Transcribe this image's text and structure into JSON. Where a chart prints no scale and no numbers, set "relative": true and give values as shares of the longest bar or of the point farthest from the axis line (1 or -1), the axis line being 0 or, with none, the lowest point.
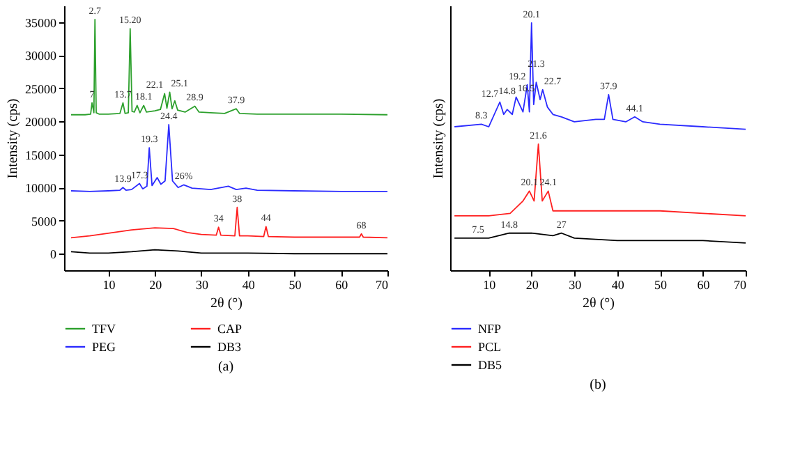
{
  "chart_data": [
    {
      "type": "line",
      "xlabel": "2θ (°)",
      "ylabel": "Intensity (cps)",
      "xlim": [
        0.5,
        70
      ],
      "ylim": [
        -2500,
        37500
      ],
      "xticks": [
        10,
        20,
        30,
        40,
        50,
        60,
        70
      ],
      "yticks": [
        0,
        5000,
        10000,
        15000,
        20000,
        25000,
        30000,
        35000
      ],
      "grid": false,
      "legend": "bottom",
      "marker": "none",
      "line_style": "solid",
      "series": [
        {
          "name": "TFV",
          "color": "#2ca02c",
          "x": [
            2,
            5,
            6.2,
            6.5,
            6.9,
            7.13,
            7.4,
            8,
            10,
            12.5,
            13.15,
            13.6,
            14.3,
            14.7,
            15.1,
            15.6,
            16.2,
            16.8,
            17.6,
            18.2,
            20,
            21.2,
            22.1,
            22.6,
            23.2,
            23.7,
            24.3,
            24.9,
            26.5,
            28.6,
            29.5,
            32,
            35,
            37.5,
            38.2,
            42,
            50,
            60,
            70
          ],
          "values": [
            21000,
            21000,
            21100,
            22800,
            21300,
            35400,
            21300,
            21100,
            21100,
            21200,
            22800,
            21200,
            21300,
            34000,
            21500,
            21400,
            22400,
            21300,
            22400,
            21400,
            21600,
            21800,
            24200,
            22000,
            24400,
            21900,
            23100,
            21700,
            21400,
            22300,
            21400,
            21300,
            21200,
            21900,
            21200,
            21100,
            21100,
            21100,
            21000
          ]
        },
        {
          "name": "PEG",
          "color": "#2b2bff",
          "x": [
            2,
            6,
            10,
            12.5,
            13.15,
            13.8,
            15,
            16.7,
            17.4,
            18.3,
            18.8,
            19.4,
            20.5,
            21.3,
            22.2,
            23,
            23.8,
            25,
            26.2,
            28,
            32,
            35.8,
            37.5,
            39.6,
            42,
            50,
            60,
            70
          ],
          "values": [
            9500,
            9400,
            9500,
            9600,
            10000,
            9600,
            9700,
            10600,
            9800,
            10200,
            16000,
            10300,
            11500,
            10500,
            11000,
            19500,
            11000,
            10000,
            10400,
            9900,
            9700,
            10200,
            9700,
            9900,
            9600,
            9500,
            9400,
            9400
          ]
        },
        {
          "name": "CAP",
          "color": "#ff2020",
          "x": [
            2,
            6,
            10,
            15,
            20,
            24,
            27,
            30,
            33.2,
            33.7,
            34.2,
            37.2,
            37.7,
            38.2,
            40,
            43.4,
            43.9,
            44.4,
            50,
            60,
            64,
            64.4,
            64.8,
            70
          ],
          "values": [
            2400,
            2700,
            3100,
            3600,
            3900,
            3800,
            3200,
            2900,
            2800,
            4000,
            2800,
            2700,
            7000,
            2700,
            2700,
            2600,
            4100,
            2600,
            2500,
            2500,
            2500,
            3000,
            2500,
            2400
          ]
        },
        {
          "name": "DB3",
          "color": "#000000",
          "x": [
            2,
            6,
            10,
            15,
            20,
            25,
            30,
            40,
            50,
            60,
            70
          ],
          "values": [
            300,
            100,
            100,
            300,
            600,
            400,
            100,
            100,
            0,
            0,
            0
          ]
        }
      ],
      "annotations": [
        {
          "text": "7",
          "x": 6.5,
          "y": 22800
        },
        {
          "text": "2.7",
          "x": 7.13,
          "y": 35400
        },
        {
          "text": "13.7",
          "x": 13.15,
          "y": 22800
        },
        {
          "text": "15.20",
          "x": 14.7,
          "y": 34000
        },
        {
          "text": "18.1",
          "x": 17.6,
          "y": 22400
        },
        {
          "text": "22.1",
          "x": 22.1,
          "y": 24200
        },
        {
          "text": "25.1",
          "x": 23.2,
          "y": 24400
        },
        {
          "text": "28.9",
          "x": 28.6,
          "y": 22300
        },
        {
          "text": "37.9",
          "x": 37.5,
          "y": 21900
        },
        {
          "text": "13.9",
          "x": 13.15,
          "y": 10000
        },
        {
          "text": "17.3",
          "x": 16.7,
          "y": 10600
        },
        {
          "text": "19.3",
          "x": 18.8,
          "y": 16000
        },
        {
          "text": "24.4",
          "x": 23,
          "y": 19500
        },
        {
          "text": "26%",
          "x": 26.2,
          "y": 10400
        },
        {
          "text": "34",
          "x": 33.7,
          "y": 4000
        },
        {
          "text": "38",
          "x": 37.7,
          "y": 7000
        },
        {
          "text": "44",
          "x": 43.9,
          "y": 4100
        },
        {
          "text": "68",
          "x": 64.4,
          "y": 3000
        },
        "(a)"
      ]
    },
    {
      "type": "line",
      "relative": true,
      "xlabel": "2θ (°)",
      "ylabel": "Intensity (cps)",
      "xlim": [
        1,
        70
      ],
      "xticks": [
        10,
        20,
        30,
        40,
        50,
        60,
        70
      ],
      "tick_labels": "x",
      "grid": false,
      "legend": "bottom",
      "marker": "none",
      "line_style": "solid",
      "series": [
        {
          "name": "NFP",
          "color": "#2b2bff",
          "x": [
            2,
            8.3,
            10,
            12.6,
            13.5,
            14.3,
            15.5,
            16.4,
            18,
            19,
            19.5,
            20,
            20.5,
            21.1,
            22,
            22.6,
            23.7,
            25,
            27,
            30,
            35,
            37,
            38,
            39,
            42,
            44.1,
            46,
            50,
            60,
            70
          ],
          "values": [
            0.58,
            0.59,
            0.58,
            0.68,
            0.63,
            0.65,
            0.63,
            0.7,
            0.64,
            0.75,
            0.64,
            1.0,
            0.67,
            0.76,
            0.69,
            0.73,
            0.66,
            0.63,
            0.62,
            0.6,
            0.61,
            0.61,
            0.71,
            0.61,
            0.6,
            0.62,
            0.6,
            0.59,
            0.58,
            0.57
          ]
        },
        {
          "name": "PCL",
          "color": "#ff2020",
          "x": [
            2,
            10,
            15,
            18,
            19.5,
            20.6,
            21.6,
            22.5,
            23.9,
            25,
            30,
            40,
            50,
            60,
            70
          ],
          "values": [
            0.22,
            0.22,
            0.23,
            0.28,
            0.32,
            0.28,
            0.51,
            0.28,
            0.32,
            0.24,
            0.24,
            0.24,
            0.24,
            0.23,
            0.22
          ]
        },
        {
          "name": "DB5",
          "color": "#000000",
          "x": [
            2,
            7.5,
            10,
            14.8,
            20,
            25,
            27,
            30,
            40,
            50,
            60,
            70
          ],
          "values": [
            0.13,
            0.13,
            0.13,
            0.15,
            0.15,
            0.14,
            0.15,
            0.13,
            0.12,
            0.12,
            0.12,
            0.11
          ]
        }
      ],
      "annotations": [
        {
          "text": "8.3",
          "x": 8.3,
          "y": 0.59
        },
        {
          "text": "12.7",
          "x": 12.6,
          "y": 0.68
        },
        {
          "text": "14.8",
          "x": 14.3,
          "y": 0.65
        },
        {
          "text": "16.5",
          "x": 16.4,
          "y": 0.7
        },
        {
          "text": "19.2",
          "x": 19,
          "y": 0.75
        },
        {
          "text": "20.1",
          "x": 20,
          "y": 1.0
        },
        {
          "text": "21.3",
          "x": 21.1,
          "y": 0.76
        },
        {
          "text": "22.7",
          "x": 22.6,
          "y": 0.73
        },
        {
          "text": "37.9",
          "x": 38,
          "y": 0.71
        },
        {
          "text": "44.1",
          "x": 44.1,
          "y": 0.62
        },
        {
          "text": "20.1",
          "x": 19.5,
          "y": 0.32
        },
        {
          "text": "21.6",
          "x": 21.6,
          "y": 0.51
        },
        {
          "text": "24.1",
          "x": 23.9,
          "y": 0.32
        },
        {
          "text": "7.5",
          "x": 7.5,
          "y": 0.13
        },
        {
          "text": "14.8",
          "x": 14.8,
          "y": 0.15
        },
        {
          "text": "27",
          "x": 27,
          "y": 0.15
        },
        "(b)"
      ]
    }
  ]
}
